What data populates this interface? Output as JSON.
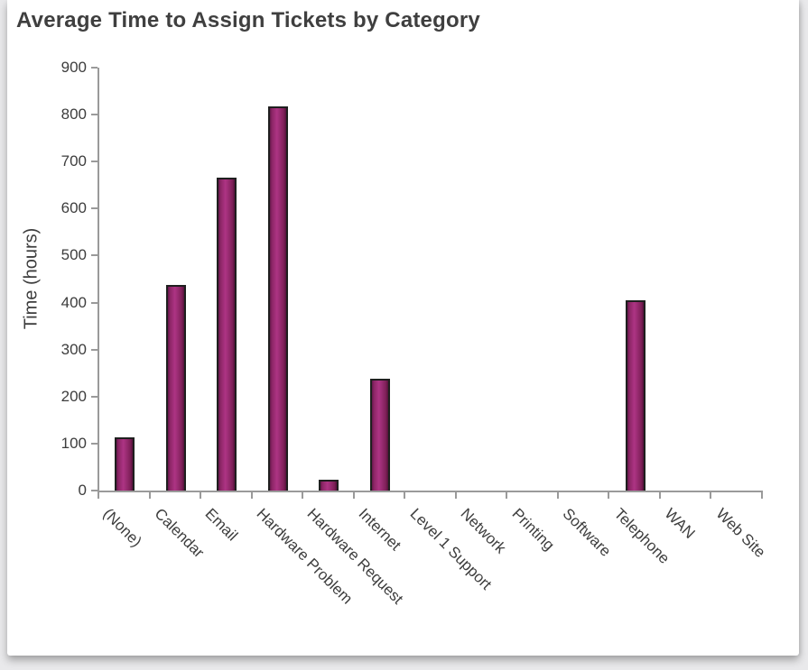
{
  "page": {
    "background_color": "#e9e9eb",
    "card_background_color": "#ffffff"
  },
  "chart_data": {
    "type": "bar",
    "title": "Average Time to Assign Tickets by Category",
    "xlabel": "",
    "ylabel": "Time (hours)",
    "categories": [
      "(None)",
      "Calendar",
      "Email",
      "Hardware Problem",
      "Hardware Request",
      "Internet",
      "Level 1 Support",
      "Network",
      "Printing",
      "Software",
      "Telephone",
      "WAN",
      "Web Site"
    ],
    "values": [
      114,
      437,
      665,
      818,
      24,
      238,
      0,
      0,
      0,
      0,
      405,
      0,
      0
    ],
    "ylim": [
      0,
      900
    ],
    "yticks": [
      0,
      100,
      200,
      300,
      400,
      500,
      600,
      700,
      800,
      900
    ],
    "grid": false,
    "legend_position": "none",
    "bar_fill_color": "#9B2D6F",
    "bar_border_color": "#1f1f1f",
    "axis_line_color": "#9a9a9a",
    "text_color": "#3d3d3d",
    "title_color": "#3f3f3f"
  }
}
